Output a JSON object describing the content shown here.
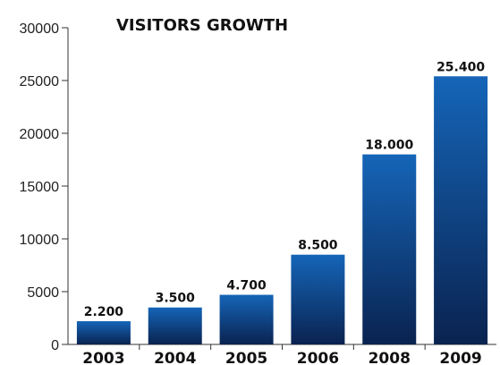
{
  "chart_data": {
    "type": "bar",
    "title": "VISITORS GROWTH",
    "categories": [
      "2003",
      "2004",
      "2005",
      "2006",
      "2008",
      "2009"
    ],
    "values": [
      2200,
      3500,
      4700,
      8500,
      18000,
      25400
    ],
    "value_labels": [
      "2.200",
      "3.500",
      "4.700",
      "8.500",
      "18.000",
      "25.400"
    ],
    "yticks": [
      "0",
      "5000",
      "10000",
      "15000",
      "20000",
      "25000",
      "30000"
    ],
    "ylim": [
      0,
      30000
    ],
    "grid": false,
    "legend": "none",
    "bar_color_top": "#1565b8",
    "bar_color_bottom": "#0a2350"
  }
}
